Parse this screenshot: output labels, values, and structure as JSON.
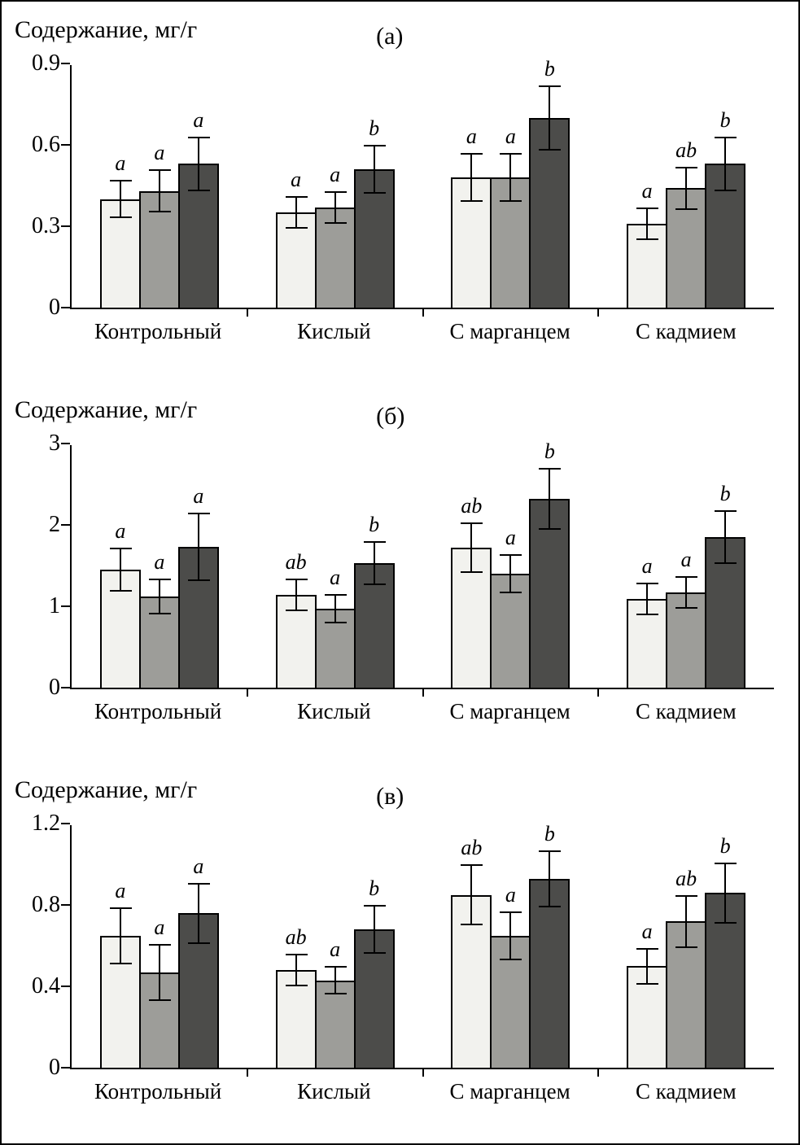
{
  "figure": {
    "background": "#ffffff",
    "border_color": "#000000",
    "bar_outline_color": "#000000"
  },
  "chart_data": [
    {
      "type": "bar",
      "panel_label": "(а)",
      "ylabel": "Содержание, мг/г",
      "xlabel": "",
      "categories": [
        "Контрольный",
        "Кислый",
        "С марганцем",
        "С кадмием"
      ],
      "ylim": [
        0,
        0.9
      ],
      "ytick_labels": [
        "0",
        "0.3",
        "0.6",
        "0.9"
      ],
      "grid": false,
      "legend": "none",
      "error_bars": true,
      "series": [
        {
          "color": "#f2f2ee",
          "values": [
            0.4,
            0.35,
            0.48,
            0.31
          ],
          "errors": [
            0.07,
            0.06,
            0.09,
            0.06
          ],
          "letters": [
            "a",
            "a",
            "a",
            "a"
          ]
        },
        {
          "color": "#9d9d99",
          "values": [
            0.43,
            0.37,
            0.48,
            0.44
          ],
          "errors": [
            0.08,
            0.06,
            0.09,
            0.08
          ],
          "letters": [
            "a",
            "a",
            "a",
            "ab"
          ]
        },
        {
          "color": "#4c4c4a",
          "values": [
            0.53,
            0.51,
            0.7,
            0.53
          ],
          "errors": [
            0.1,
            0.09,
            0.12,
            0.1
          ],
          "letters": [
            "a",
            "b",
            "b",
            "b"
          ]
        }
      ]
    },
    {
      "type": "bar",
      "panel_label": "(б)",
      "ylabel": "Содержание, мг/г",
      "xlabel": "",
      "categories": [
        "Контрольный",
        "Кислый",
        "С марганцем",
        "С кадмием"
      ],
      "ylim": [
        0,
        3
      ],
      "ytick_labels": [
        "0",
        "1",
        "2",
        "3"
      ],
      "grid": false,
      "legend": "none",
      "error_bars": true,
      "series": [
        {
          "color": "#f2f2ee",
          "values": [
            1.45,
            1.14,
            1.72,
            1.09
          ],
          "errors": [
            0.27,
            0.2,
            0.31,
            0.2
          ],
          "letters": [
            "a",
            "ab",
            "ab",
            "a"
          ]
        },
        {
          "color": "#9d9d99",
          "values": [
            1.12,
            0.97,
            1.4,
            1.17
          ],
          "errors": [
            0.22,
            0.18,
            0.24,
            0.2
          ],
          "letters": [
            "a",
            "a",
            "a",
            "a"
          ]
        },
        {
          "color": "#4c4c4a",
          "values": [
            1.73,
            1.53,
            2.32,
            1.85
          ],
          "errors": [
            0.42,
            0.27,
            0.38,
            0.33
          ],
          "letters": [
            "a",
            "b",
            "b",
            "b"
          ]
        }
      ]
    },
    {
      "type": "bar",
      "panel_label": "(в)",
      "ylabel": "Содержание, мг/г",
      "xlabel": "",
      "categories": [
        "Контрольный",
        "Кислый",
        "С марганцем",
        "С кадмием"
      ],
      "ylim": [
        0,
        1.2
      ],
      "ytick_labels": [
        "0",
        "0.4",
        "0.8",
        "1.2"
      ],
      "grid": false,
      "legend": "none",
      "error_bars": true,
      "series": [
        {
          "color": "#f2f2ee",
          "values": [
            0.65,
            0.48,
            0.85,
            0.5
          ],
          "errors": [
            0.14,
            0.08,
            0.15,
            0.09
          ],
          "letters": [
            "a",
            "ab",
            "ab",
            "a"
          ]
        },
        {
          "color": "#9d9d99",
          "values": [
            0.47,
            0.43,
            0.65,
            0.72
          ],
          "errors": [
            0.14,
            0.07,
            0.12,
            0.13
          ],
          "letters": [
            "a",
            "a",
            "a",
            "ab"
          ]
        },
        {
          "color": "#4c4c4a",
          "values": [
            0.76,
            0.68,
            0.93,
            0.86
          ],
          "errors": [
            0.15,
            0.12,
            0.14,
            0.15
          ],
          "letters": [
            "a",
            "b",
            "b",
            "b"
          ]
        }
      ]
    }
  ]
}
